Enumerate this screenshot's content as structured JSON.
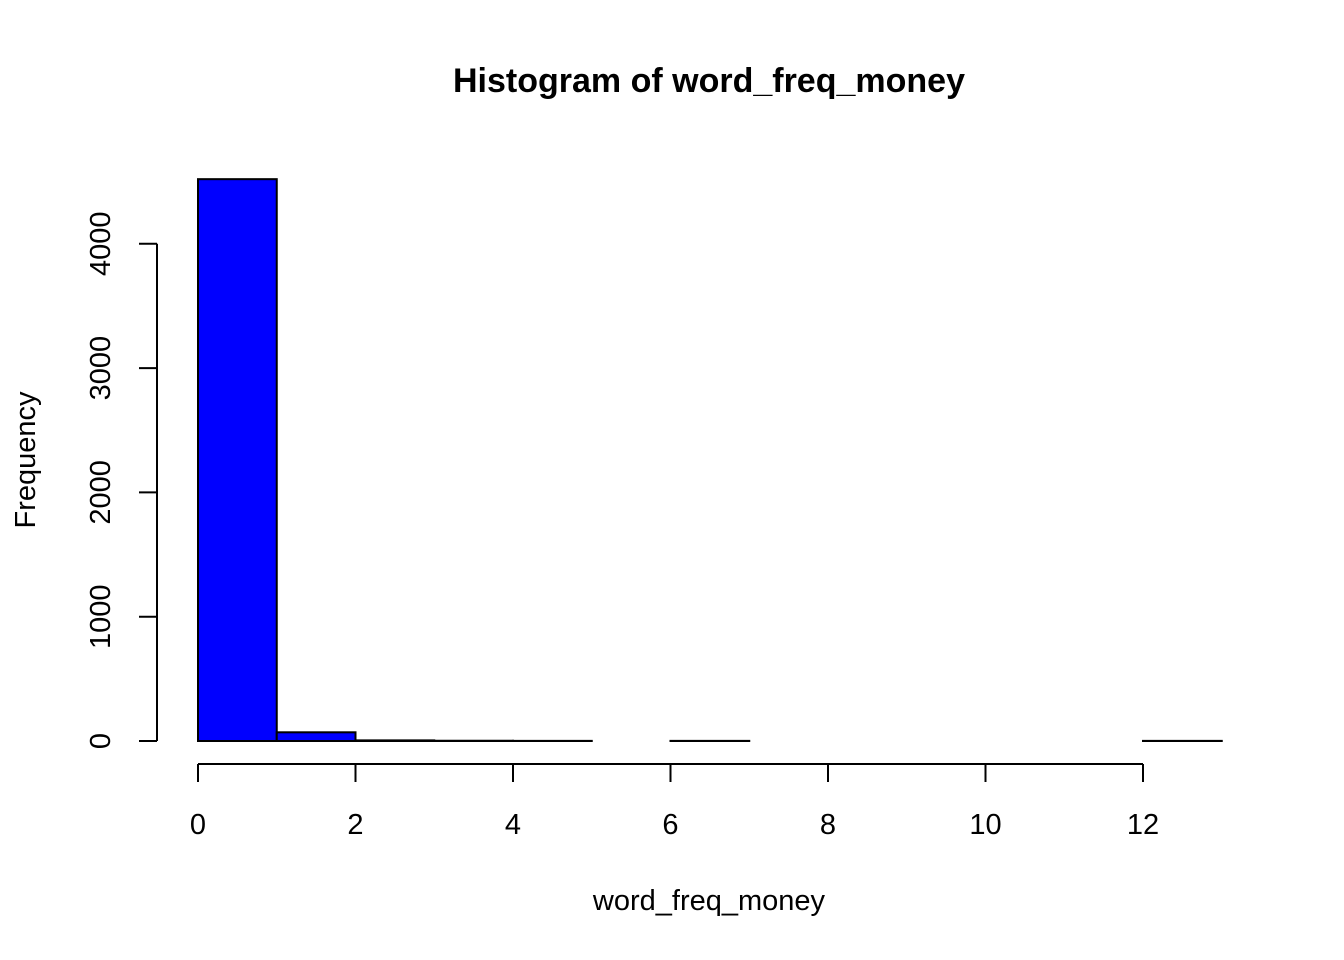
{
  "chart_data": {
    "type": "bar",
    "title": "Histogram of word_freq_money",
    "xlabel": "word_freq_money",
    "ylabel": "Frequency",
    "bar_color": "#0000FF",
    "bar_border_color": "#000000",
    "grid": false,
    "legend": "none",
    "bins": [
      {
        "x0": 0,
        "x1": 1,
        "count": 4520
      },
      {
        "x0": 1,
        "x1": 2,
        "count": 70
      },
      {
        "x0": 2,
        "x1": 3,
        "count": 5
      },
      {
        "x0": 3,
        "x1": 4,
        "count": 2
      },
      {
        "x0": 4,
        "x1": 5,
        "count": 1
      },
      {
        "x0": 5,
        "x1": 6,
        "count": 0
      },
      {
        "x0": 6,
        "x1": 7,
        "count": 1
      },
      {
        "x0": 7,
        "x1": 8,
        "count": 0
      },
      {
        "x0": 8,
        "x1": 9,
        "count": 0
      },
      {
        "x0": 9,
        "x1": 10,
        "count": 0
      },
      {
        "x0": 10,
        "x1": 11,
        "count": 0
      },
      {
        "x0": 11,
        "x1": 12,
        "count": 0
      },
      {
        "x0": 12,
        "x1": 13,
        "count": 1
      }
    ],
    "xlim": [
      0,
      13
    ],
    "ylim": [
      0,
      4520
    ],
    "x_ticks": [
      0,
      2,
      4,
      6,
      8,
      10,
      12
    ],
    "x_tick_labels": [
      "0",
      "2",
      "4",
      "6",
      "8",
      "10",
      "12"
    ],
    "y_ticks": [
      0,
      1000,
      2000,
      3000,
      4000
    ],
    "y_tick_labels": [
      "0",
      "1000",
      "2000",
      "3000",
      "4000"
    ]
  }
}
